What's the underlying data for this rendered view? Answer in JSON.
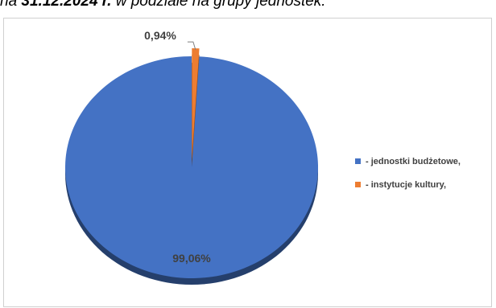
{
  "header": {
    "prefix": "na ",
    "date": "31.12.2024 r.",
    "suffix": " w podziale na grupy jednostek:"
  },
  "chart_data": {
    "type": "pie",
    "title": "",
    "categories": [
      "- jednostki budżetowe,",
      "- instytucje kultury,"
    ],
    "values": [
      99.06,
      0.94
    ],
    "labels": [
      "99,06%",
      "0,94%"
    ],
    "colors": [
      "#4472C4",
      "#ED7D31"
    ],
    "legend_position": "right",
    "style": "3d"
  }
}
